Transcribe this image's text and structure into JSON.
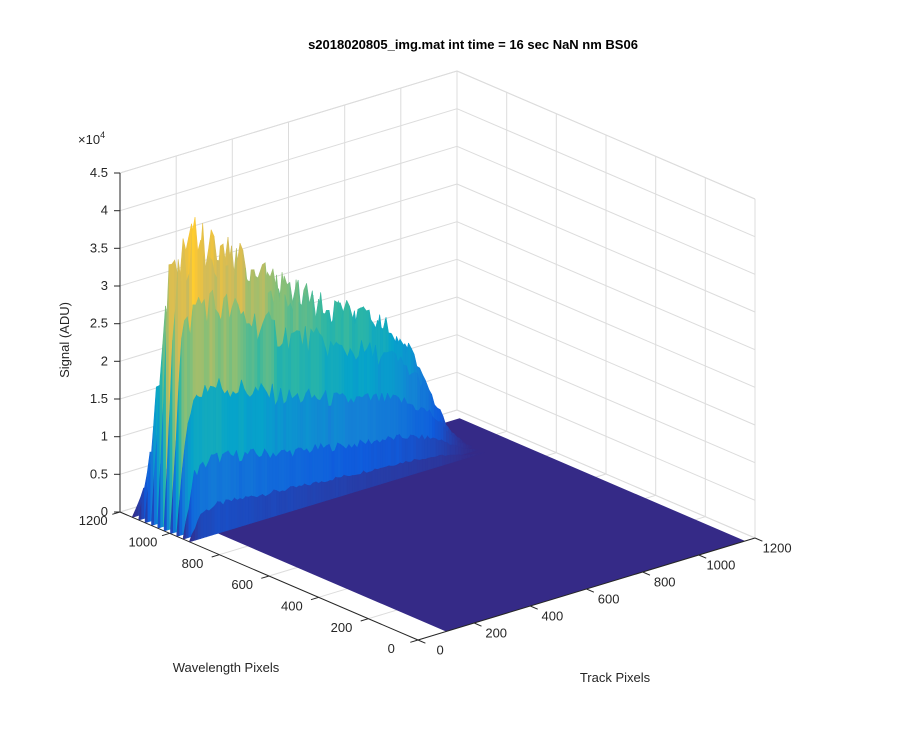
{
  "chart_data": {
    "type": "surface",
    "title": "s2018020805_img.mat int time = 16 sec  NaN nm BS06",
    "xlabel": "Track Pixels",
    "ylabel": "Wavelength Pixels",
    "zlabel": "Signal (ADU)",
    "z_exponent_label": "×10",
    "z_exponent_power": "4",
    "xlim": [
      0,
      1200
    ],
    "ylim": [
      0,
      1200
    ],
    "zlim": [
      0,
      4.5
    ],
    "x_ticks": [
      "0",
      "200",
      "400",
      "600",
      "800",
      "1000",
      "1200"
    ],
    "y_ticks": [
      "0",
      "200",
      "400",
      "600",
      "800",
      "1000",
      "1200"
    ],
    "z_ticks": [
      "0",
      "0.5",
      "1",
      "1.5",
      "2",
      "2.5",
      "3",
      "3.5",
      "4",
      "4.5"
    ],
    "grid": true,
    "colormap": [
      "#352a87",
      "#0f5cdd",
      "#1481d6",
      "#06a4ca",
      "#2eb7a4",
      "#87bf77",
      "#d1bb59",
      "#fec832",
      "#f9fb0e"
    ],
    "surface": {
      "floor_value": 0,
      "signal_band": {
        "track_start": 0,
        "track_end": 1050,
        "wavelength_start": 920,
        "wavelength_end": 1150
      },
      "peak_profile": [
        {
          "track": 0,
          "peak": 0.08
        },
        {
          "track": 40,
          "peak": 3.6
        },
        {
          "track": 100,
          "peak": 4.2
        },
        {
          "track": 200,
          "peak": 3.9
        },
        {
          "track": 300,
          "peak": 3.5
        },
        {
          "track": 400,
          "peak": 3.1
        },
        {
          "track": 500,
          "peak": 2.85
        },
        {
          "track": 600,
          "peak": 2.5
        },
        {
          "track": 700,
          "peak": 2.3
        },
        {
          "track": 800,
          "peak": 2.0
        },
        {
          "track": 900,
          "peak": 1.4
        },
        {
          "track": 1000,
          "peak": 0.3
        },
        {
          "track": 1050,
          "peak": 0.02
        }
      ]
    }
  }
}
